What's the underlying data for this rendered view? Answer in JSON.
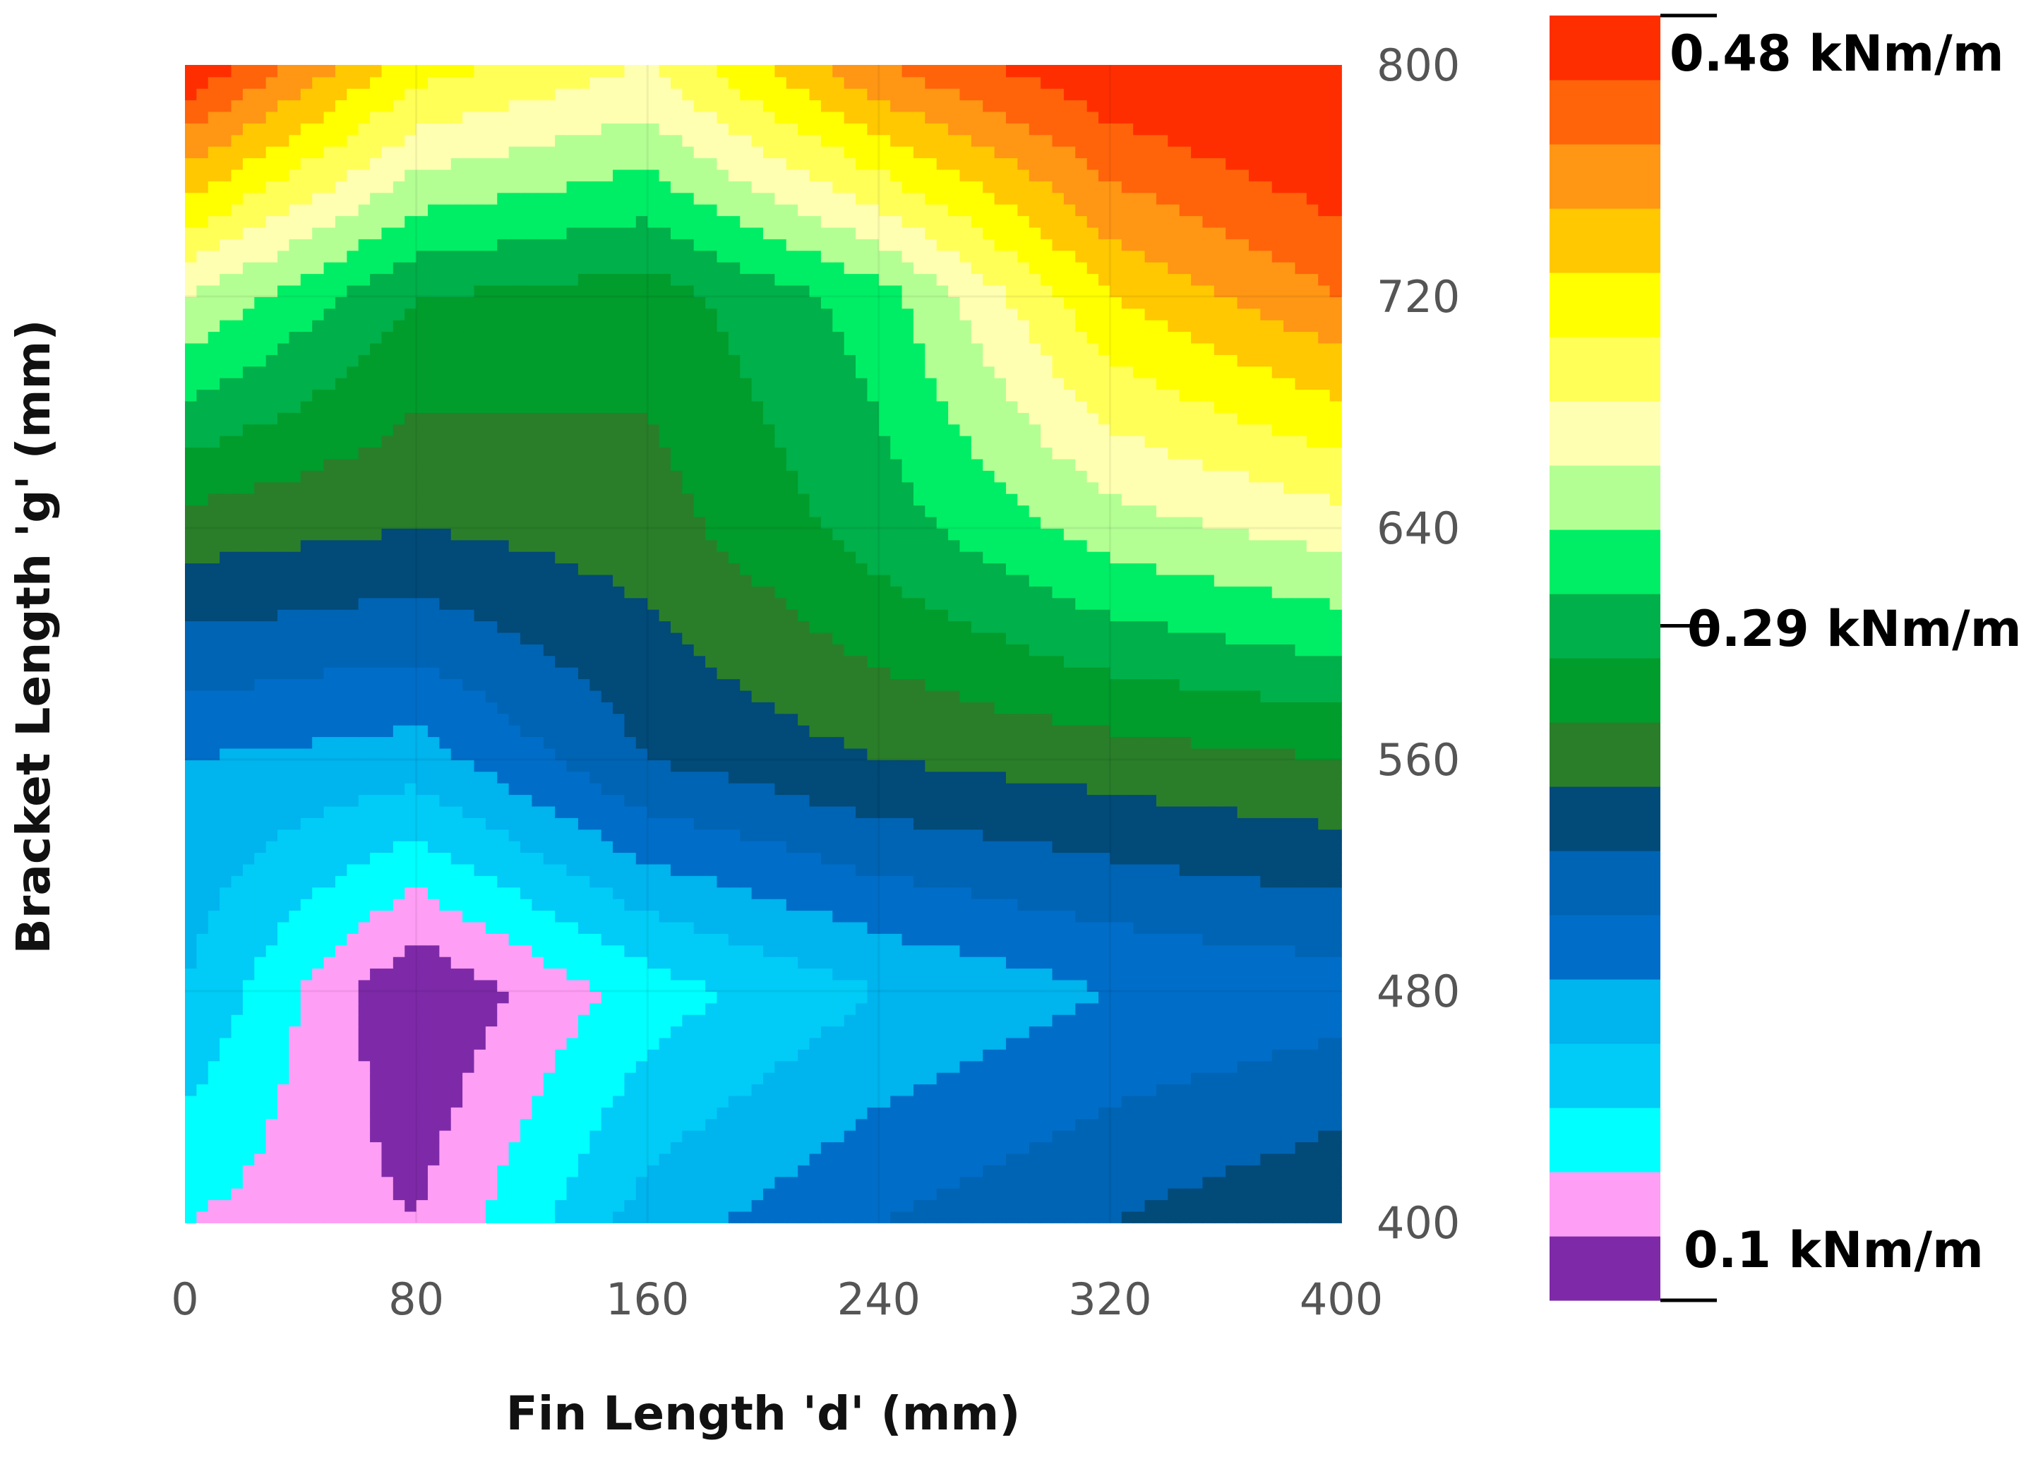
{
  "chart_data": {
    "type": "heatmap",
    "title": "",
    "xlabel": "Fin Length 'd' (mm)",
    "ylabel": "Bracket Length 'g' (mm)",
    "xlim": [
      0,
      400
    ],
    "ylim": [
      400,
      800
    ],
    "x_ticks": [
      "0",
      "80",
      "160",
      "240",
      "320",
      "400"
    ],
    "y_ticks": [
      "400",
      "480",
      "560",
      "640",
      "720",
      "800"
    ],
    "grid": false,
    "legend": "right colorbar",
    "x": [
      0,
      80,
      160,
      240,
      320,
      400
    ],
    "y": [
      400,
      480,
      560,
      640,
      720,
      800
    ],
    "z": [
      [
        0.12,
        0.1,
        0.17,
        0.2,
        0.22,
        0.24
      ],
      [
        0.16,
        0.08,
        0.13,
        0.16,
        0.18,
        0.19
      ],
      [
        0.18,
        0.17,
        0.22,
        0.24,
        0.25,
        0.26
      ],
      [
        0.25,
        0.24,
        0.25,
        0.29,
        0.33,
        0.35
      ],
      [
        0.34,
        0.28,
        0.27,
        0.31,
        0.4,
        0.44
      ],
      [
        0.48,
        0.39,
        0.36,
        0.44,
        0.48,
        0.5
      ]
    ],
    "colorbar": {
      "levels": [
        0.08,
        0.1,
        0.12,
        0.14,
        0.16,
        0.18,
        0.2,
        0.22,
        0.24,
        0.26,
        0.28,
        0.3,
        0.32,
        0.34,
        0.36,
        0.38,
        0.4,
        0.42,
        0.44,
        0.46,
        0.48
      ],
      "colors": [
        "#7e2aa8",
        "#ff9ef5",
        "#00ffff",
        "#00ccf7",
        "#00b4ee",
        "#006ec8",
        "#0064b4",
        "#024a78",
        "#2a7e2a",
        "#009c2c",
        "#00b04a",
        "#00ee66",
        "#b4ff94",
        "#ffffb2",
        "#ffff58",
        "#ffff00",
        "#ffc800",
        "#ff9614",
        "#ff640a",
        "#ff2e00"
      ],
      "labels": [
        {
          "text": "0.48 kNm/m",
          "value": 0.48
        },
        {
          "text": "0.29 kNm/m",
          "value": 0.29
        },
        {
          "text": "0.1 kNm/m",
          "value": 0.1
        }
      ]
    }
  }
}
